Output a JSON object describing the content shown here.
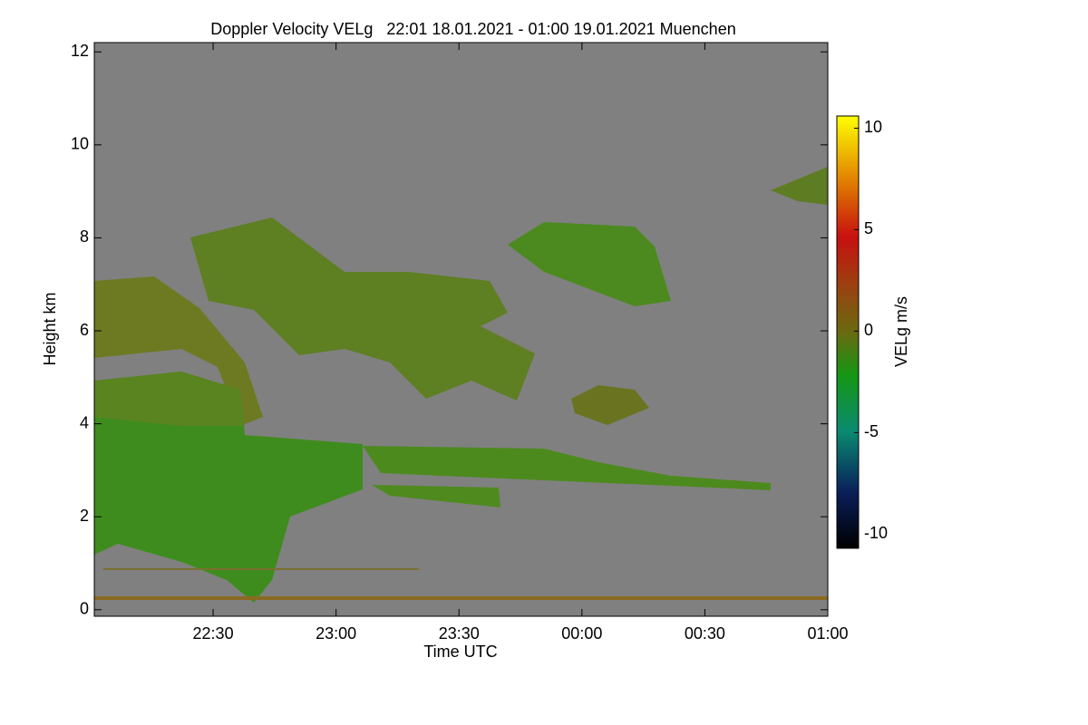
{
  "chart_data": {
    "type": "heatmap",
    "title": "Doppler Velocity VELg   22:01 18.01.2021 - 01:00 19.01.2021 Muenchen",
    "xlabel": "Time UTC",
    "ylabel": "Height km",
    "colorbar_label": "VELg m/s",
    "xlim": [
      1,
      180
    ],
    "xticks": [
      {
        "value": 30,
        "label": "22:30"
      },
      {
        "value": 60,
        "label": "23:00"
      },
      {
        "value": 90,
        "label": "23:30"
      },
      {
        "value": 120,
        "label": "00:00"
      },
      {
        "value": 150,
        "label": "00:30"
      },
      {
        "value": 180,
        "label": "01:00"
      }
    ],
    "ylim": [
      -0.14,
      12.2
    ],
    "yticks": [
      0,
      2,
      4,
      6,
      8,
      10,
      12
    ],
    "zlim": [
      -10.7,
      10.6
    ],
    "zticks": [
      -10,
      -5,
      0,
      5,
      10
    ],
    "background": "#808080"
  }
}
